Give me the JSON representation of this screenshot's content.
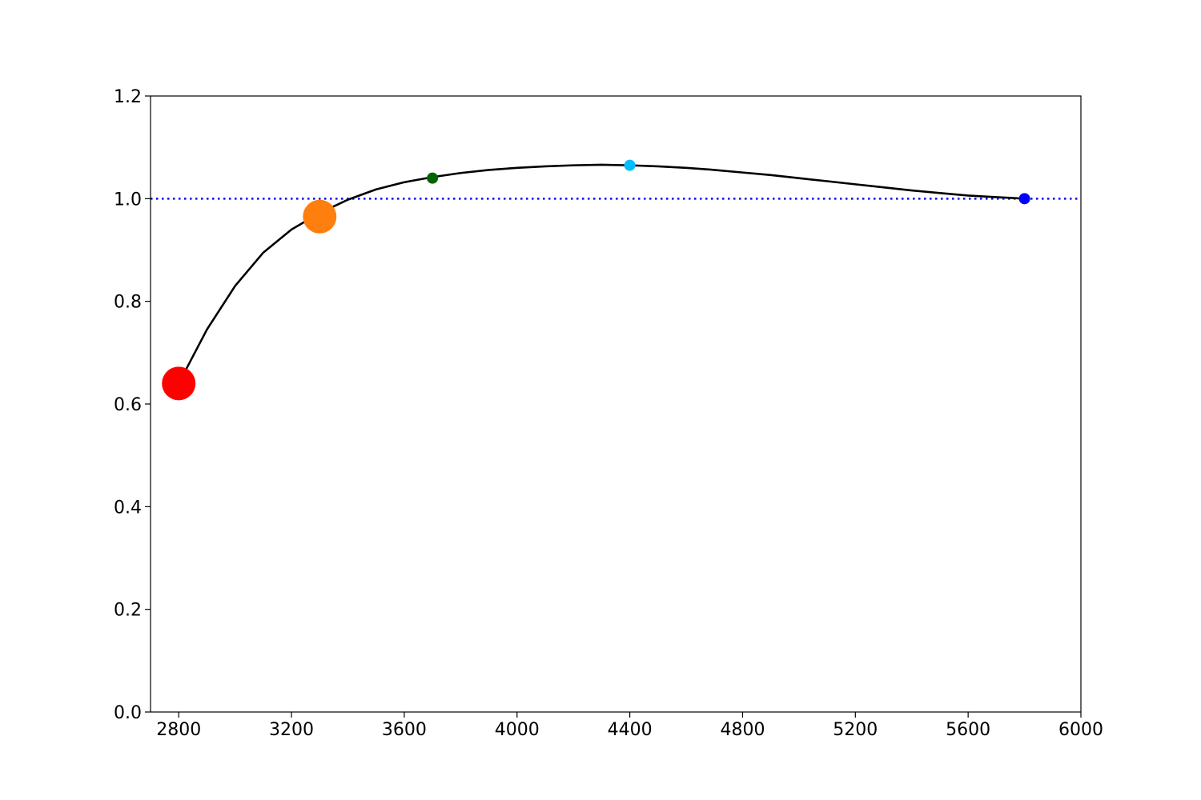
{
  "chart_data": {
    "type": "line",
    "title": "",
    "xlabel": "",
    "ylabel": "",
    "xlim": [
      2700,
      6000
    ],
    "ylim": [
      0.0,
      1.2
    ],
    "x_ticks": [
      2800,
      3200,
      3600,
      4000,
      4400,
      4800,
      5200,
      5600,
      6000
    ],
    "x_tick_labels": [
      "2800",
      "3200",
      "3600",
      "4000",
      "4400",
      "4800",
      "5200",
      "5600",
      "6000"
    ],
    "y_ticks": [
      0.0,
      0.2,
      0.4,
      0.6,
      0.8,
      1.0,
      1.2
    ],
    "y_tick_labels": [
      "0.0",
      "0.2",
      "0.4",
      "0.6",
      "0.8",
      "1.0",
      "1.2"
    ],
    "grid": false,
    "legend": "none",
    "curve": {
      "color": "#000000",
      "x": [
        2800,
        2900,
        3000,
        3100,
        3200,
        3300,
        3400,
        3500,
        3600,
        3700,
        3800,
        3900,
        4000,
        4100,
        4200,
        4300,
        4400,
        4500,
        4600,
        4700,
        4800,
        4900,
        5000,
        5100,
        5200,
        5300,
        5400,
        5500,
        5600,
        5700,
        5800
      ],
      "y": [
        0.64,
        0.745,
        0.83,
        0.895,
        0.94,
        0.972,
        0.998,
        1.018,
        1.032,
        1.042,
        1.05,
        1.056,
        1.06,
        1.063,
        1.065,
        1.066,
        1.065,
        1.063,
        1.06,
        1.056,
        1.051,
        1.046,
        1.04,
        1.034,
        1.028,
        1.022,
        1.016,
        1.011,
        1.006,
        1.003,
        1.0
      ]
    },
    "reference_line": {
      "y": 1.0,
      "color": "#0000ff",
      "style": "dotted"
    },
    "points": [
      {
        "x": 2800,
        "y": 0.64,
        "color": "#ff0000",
        "size": 3
      },
      {
        "x": 3300,
        "y": 0.965,
        "color": "#ff7f0e",
        "size": 3
      },
      {
        "x": 3700,
        "y": 1.04,
        "color": "#006400",
        "size": 1
      },
      {
        "x": 4400,
        "y": 1.065,
        "color": "#00bfff",
        "size": 1
      },
      {
        "x": 5800,
        "y": 1.0,
        "color": "#0000ff",
        "size": 1
      }
    ]
  }
}
